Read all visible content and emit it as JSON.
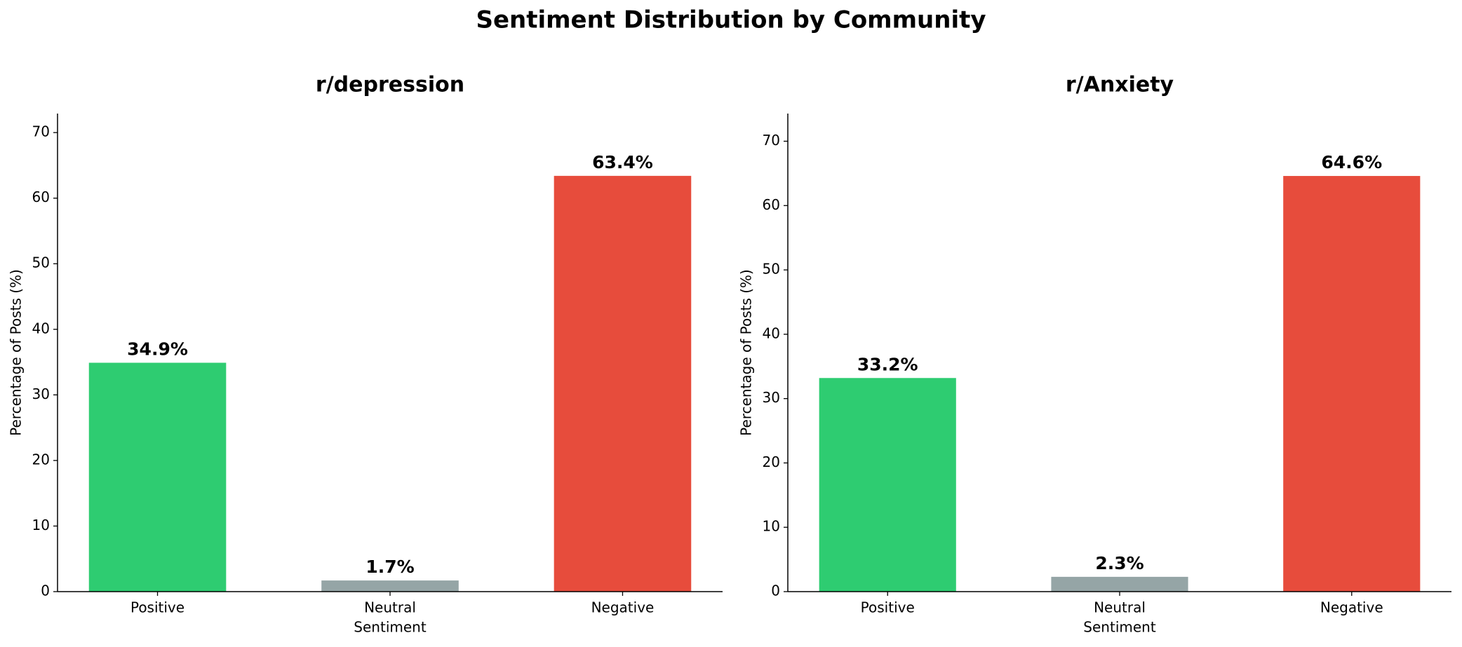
{
  "title": "Sentiment Distribution by Community",
  "chart_data": [
    {
      "type": "bar",
      "title": "r/depression",
      "x_label": "Sentiment",
      "y_label": "Percentage of Posts (%)",
      "categories": [
        "Positive",
        "Neutral",
        "Negative"
      ],
      "values": [
        34.9,
        1.7,
        63.4
      ],
      "value_labels": [
        "34.9%",
        "1.7%",
        "63.4%"
      ],
      "colors": [
        "#2ecc71",
        "#95a5a6",
        "#e74c3c"
      ],
      "ylim": [
        0,
        72.9
      ],
      "yticks": [
        0,
        10,
        20,
        30,
        40,
        50,
        60,
        70
      ],
      "grid": false
    },
    {
      "type": "bar",
      "title": "r/Anxiety",
      "x_label": "Sentiment",
      "y_label": "Percentage of Posts (%)",
      "categories": [
        "Positive",
        "Neutral",
        "Negative"
      ],
      "values": [
        33.2,
        2.3,
        64.6
      ],
      "value_labels": [
        "33.2%",
        "2.3%",
        "64.6%"
      ],
      "colors": [
        "#2ecc71",
        "#95a5a6",
        "#e74c3c"
      ],
      "ylim": [
        0,
        74.3
      ],
      "yticks": [
        0,
        10,
        20,
        30,
        40,
        50,
        60,
        70
      ],
      "grid": false
    }
  ]
}
